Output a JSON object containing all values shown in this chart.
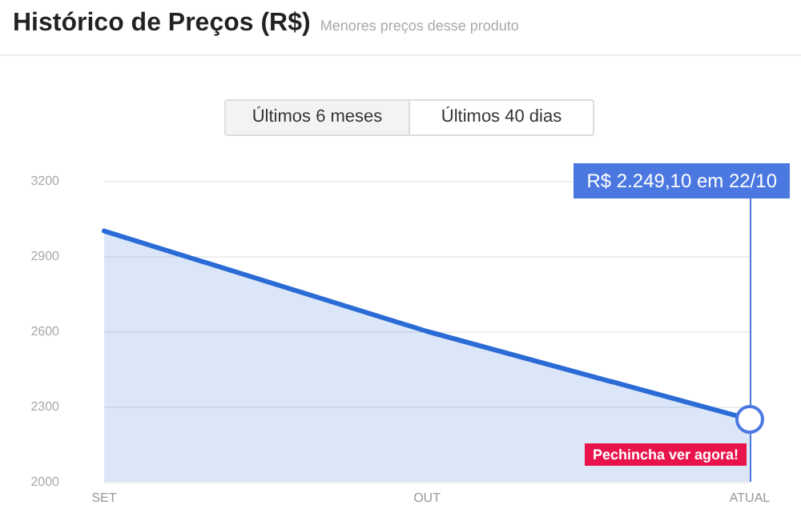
{
  "chart_data": {
    "type": "area",
    "title": "Histórico de Preços (R$)",
    "subtitle": "Menores preços desse produto",
    "categories": [
      "SET",
      "OUT",
      "ATUAL"
    ],
    "series": [
      {
        "color": "#2a6bd6",
        "values": [
          3000,
          2600,
          2249.1
        ]
      }
    ],
    "ylim": [
      2000,
      3200
    ],
    "yticks": [
      2000,
      2300,
      2600,
      2900,
      3200
    ],
    "grid": "y",
    "marker": "none",
    "line_style": "solid",
    "ref_lines": [
      {
        "axis": "x",
        "value": "ATUAL",
        "color": "#4a78e0"
      }
    ],
    "annotations": [
      "Últimos 6 meses",
      "Últimos 40 dias",
      "R$ 2.249,10 em 22/10",
      "Pechincha ver agora!"
    ]
  }
}
